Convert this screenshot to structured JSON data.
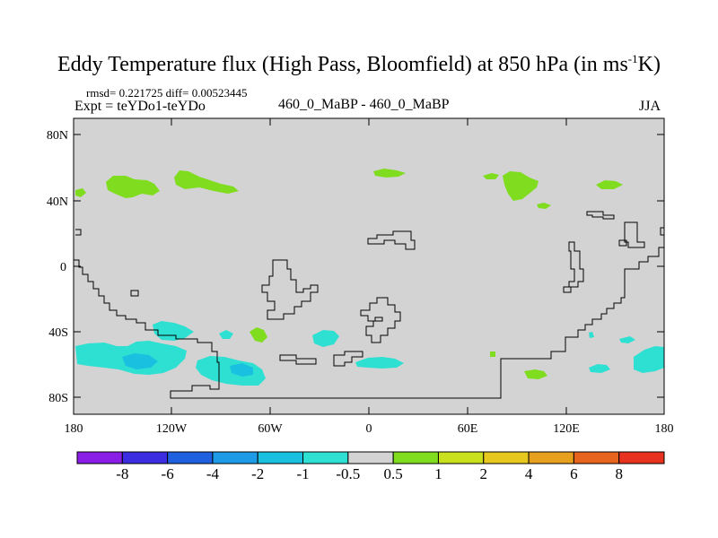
{
  "header": {
    "title_main": "Eddy Temperature flux (High Pass, Bloomfield) at 850 hPa (in ms",
    "title_sup": "-1",
    "title_end": "K)",
    "stats": "rmsd= 0.221725 diff= 0.00523445",
    "expt": "Expt = teYDo1-teYDo",
    "center_label": "460_0_MaBP - 460_0_MaBP",
    "season": "JJA"
  },
  "map": {
    "background_color": "#d3d3d3",
    "lat_labels": [
      "80N",
      "40N",
      "0",
      "40S",
      "80S"
    ],
    "lon_labels": [
      "180",
      "120W",
      "60W",
      "0",
      "60E",
      "120E",
      "180"
    ]
  },
  "colorbar": {
    "colors": [
      "#8a1de6",
      "#3c2ee0",
      "#1e60e0",
      "#1e9be6",
      "#1ac0e0",
      "#2ee0d2",
      "#d3d3d3",
      "#7fdc1e",
      "#c8e01e",
      "#e6c81e",
      "#e6a01e",
      "#e6641e",
      "#e6321e"
    ],
    "labels": [
      "-8",
      "-6",
      "-4",
      "-2",
      "-1",
      "-0.5",
      "0.5",
      "1",
      "2",
      "4",
      "6",
      "8"
    ]
  }
}
